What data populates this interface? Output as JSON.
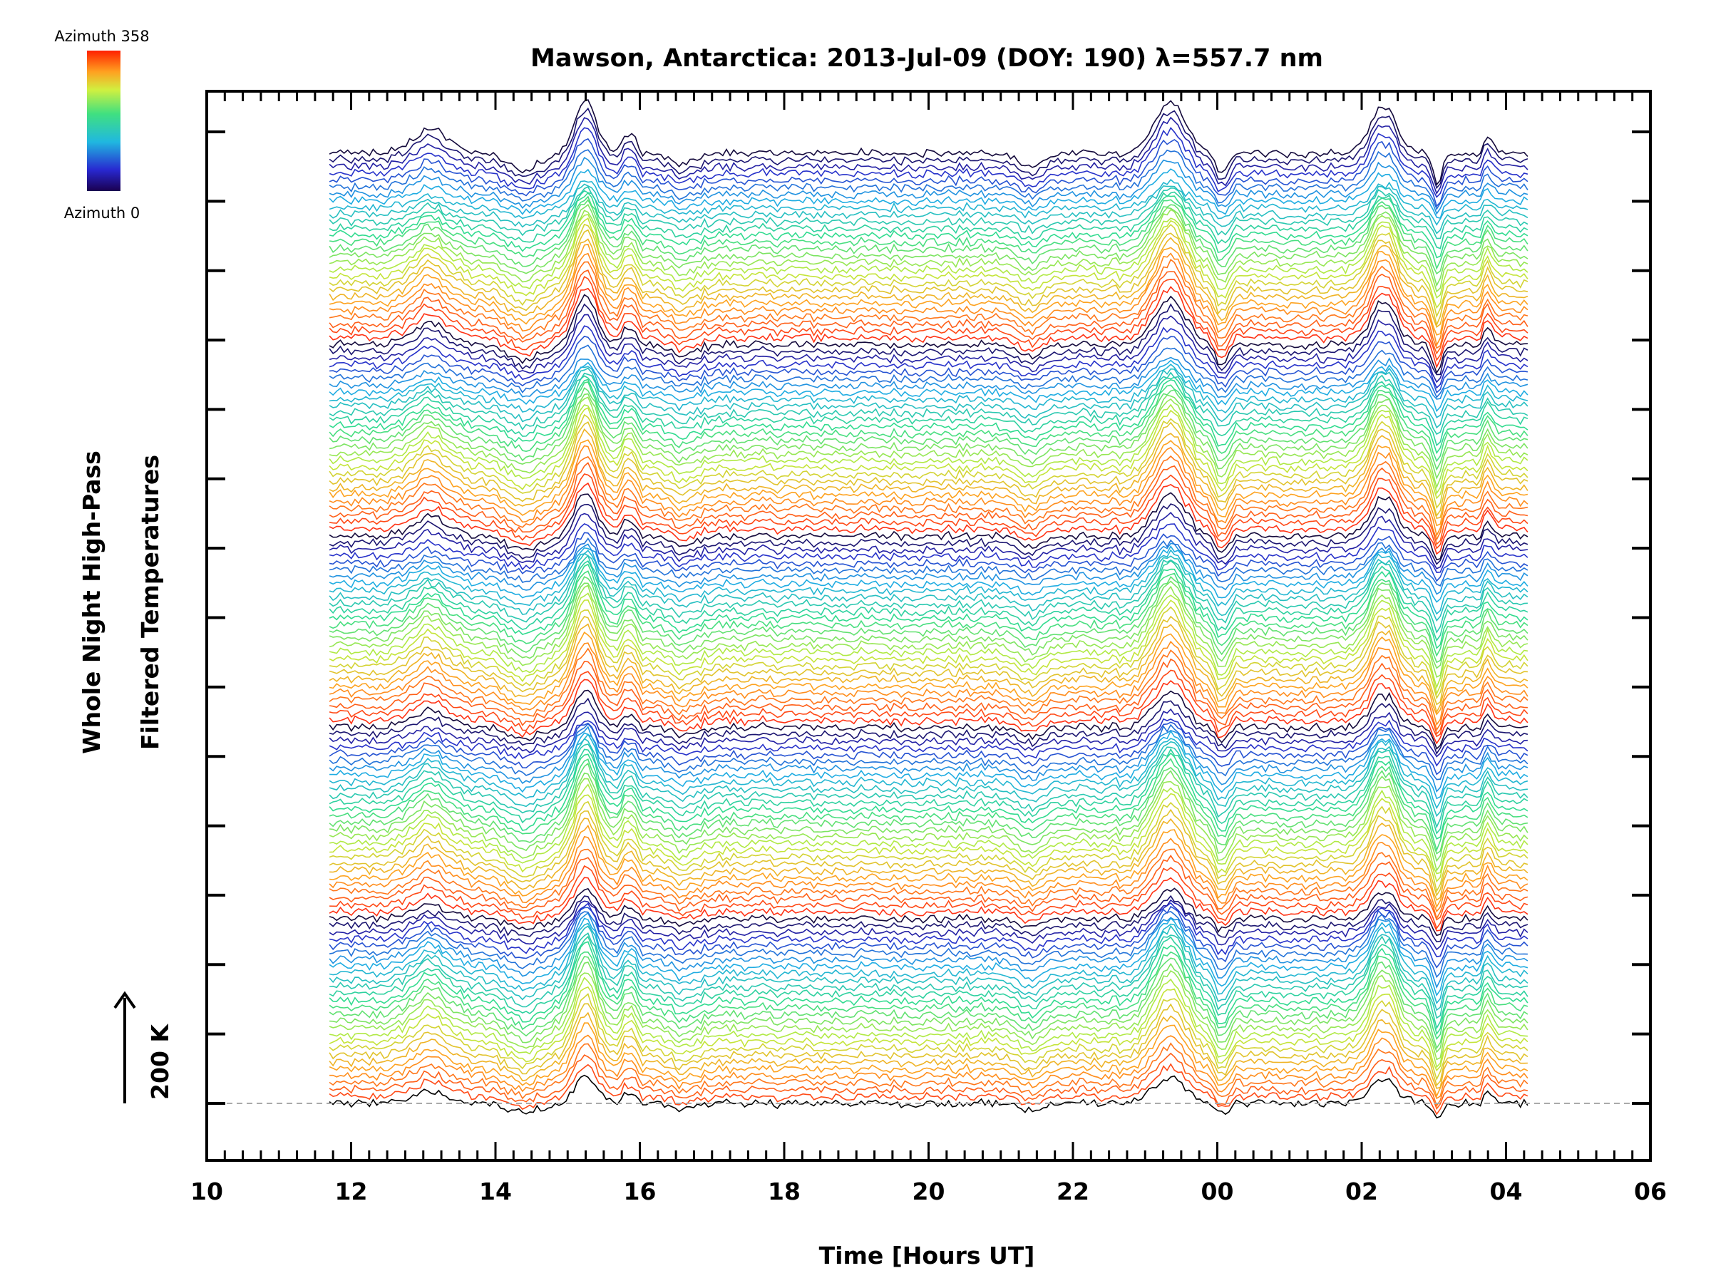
{
  "chart_data": {
    "type": "line",
    "title": "Mawson, Antarctica: 2013-Jul-09 (DOY: 190) λ=557.7 nm",
    "xlabel": "Time [Hours UT]",
    "ylabel_line1": "Whole Night High-Pass",
    "ylabel_line2": "Filtered Temperatures",
    "scale_label": "200 K",
    "colorbar": {
      "top_label": "Azimuth 358",
      "bottom_label": "Azimuth 0"
    },
    "x_tick_labels": [
      "10",
      "12",
      "14",
      "16",
      "18",
      "20",
      "22",
      "00",
      "02",
      "04",
      "06"
    ],
    "xlim": [
      10,
      30
    ],
    "x_start": 11.7,
    "x_end": 28.3,
    "series_count": 140,
    "baseline_dashed": true,
    "colors": {
      "axis": "#000000",
      "baseline": "#aaaaaa"
    },
    "features": [
      {
        "time": 13.1,
        "amplitude": 28
      },
      {
        "time": 15.25,
        "amplitude": 62
      },
      {
        "time": 15.85,
        "amplitude": 24
      },
      {
        "time": 23.35,
        "amplitude": 60
      },
      {
        "time": 24.05,
        "amplitude": -26
      },
      {
        "time": 26.3,
        "amplitude": 56
      },
      {
        "time": 27.05,
        "amplitude": -36
      },
      {
        "time": 27.75,
        "amplitude": 20
      },
      {
        "time": 14.4,
        "amplitude": -20
      },
      {
        "time": 16.6,
        "amplitude": -14
      },
      {
        "time": 21.4,
        "amplitude": -14
      }
    ]
  }
}
